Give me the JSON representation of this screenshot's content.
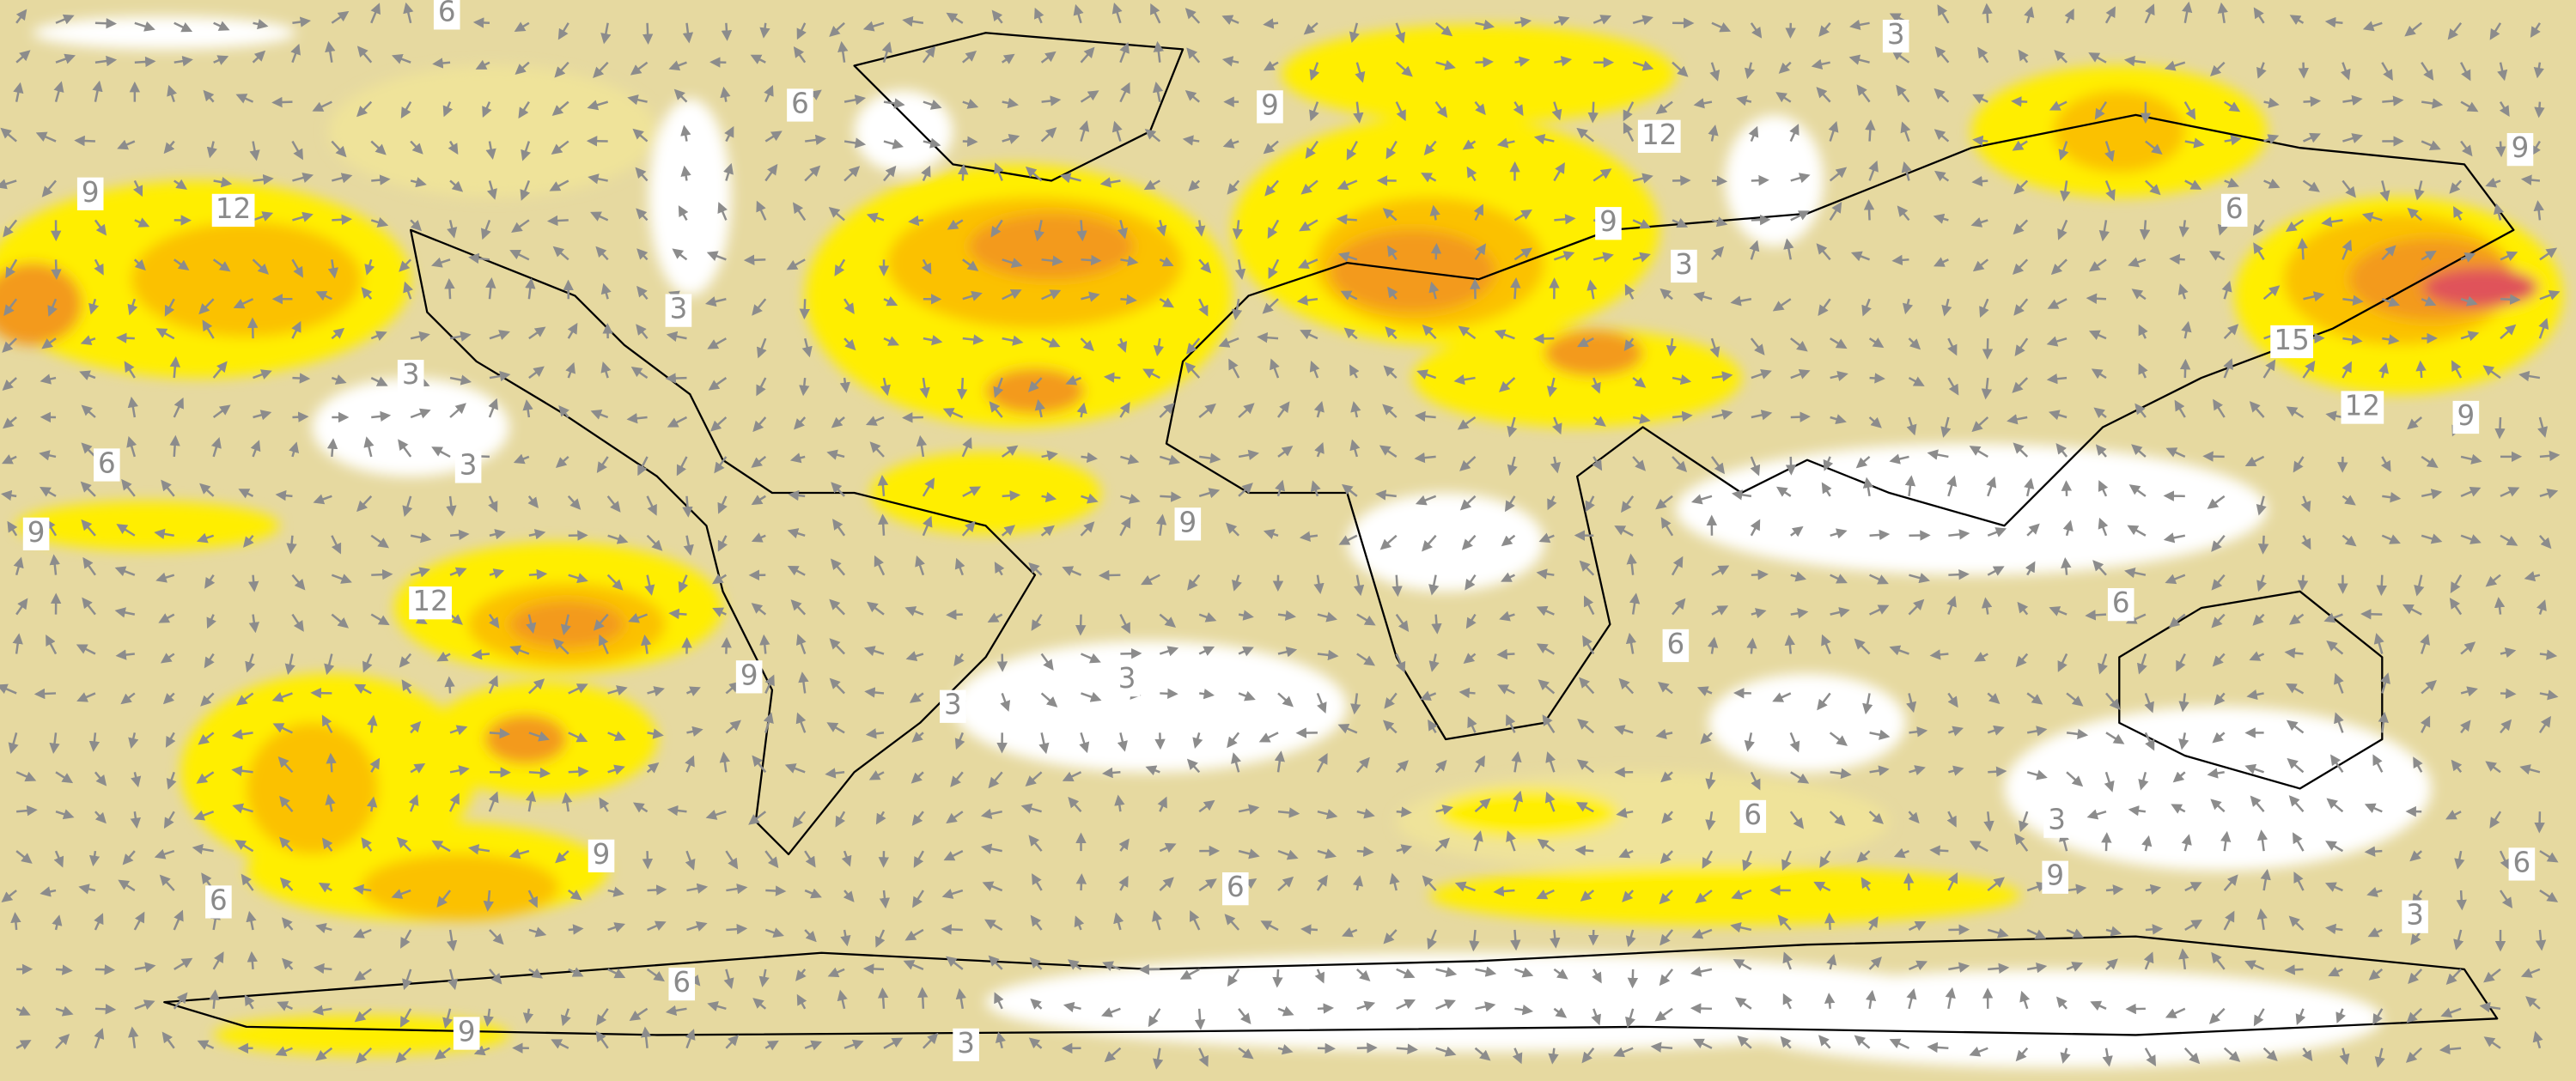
{
  "contour_labels": [
    "6",
    "3",
    "6",
    "9",
    "12",
    "9",
    "9",
    "12",
    "6",
    "9",
    "3",
    "3",
    "15",
    "3",
    "12",
    "9",
    "6",
    "3",
    "9",
    "9",
    "12",
    "6",
    "6",
    "9",
    "3",
    "3",
    "6",
    "3",
    "9",
    "9",
    "6",
    "6",
    "6",
    "3",
    "6",
    "9",
    "3"
  ]
}
